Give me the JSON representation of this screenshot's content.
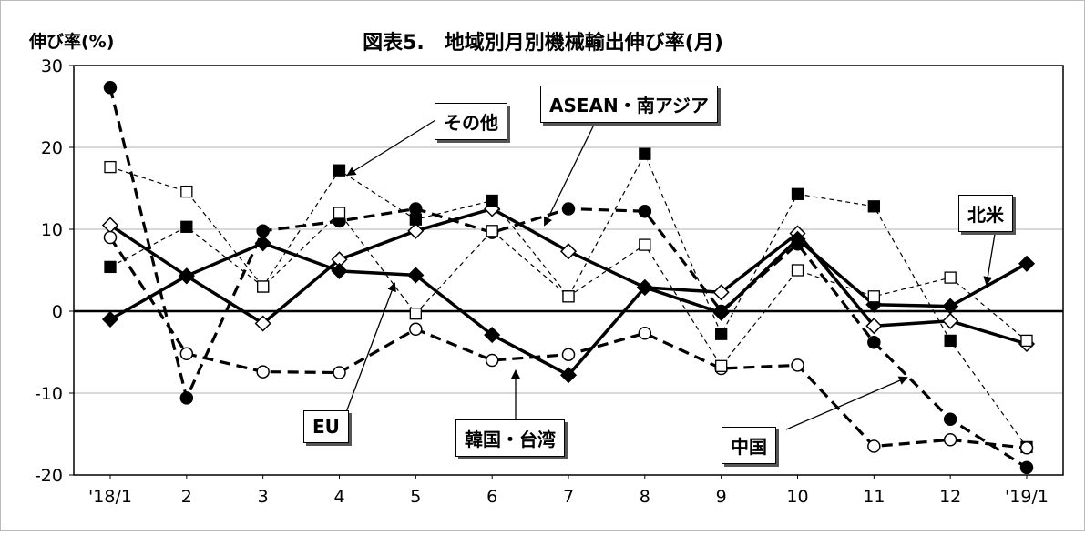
{
  "chart_data": {
    "type": "line",
    "title": "図表5.　地域別月別機械輸出伸び率(月)",
    "ylabel": "伸び率(%)",
    "xlabel": "",
    "categories": [
      "'18/1",
      "2",
      "3",
      "4",
      "5",
      "6",
      "7",
      "8",
      "9",
      "10",
      "11",
      "12",
      "'19/1"
    ],
    "ylim": [
      -20,
      30
    ],
    "yticks": [
      -20,
      -10,
      0,
      10,
      20,
      30
    ],
    "grid": true,
    "series": [
      {
        "name": "北米",
        "values": [
          10.5,
          4.3,
          -1.5,
          6.3,
          9.8,
          12.5,
          7.3,
          2.9,
          2.3,
          9.5,
          -1.8,
          -1.2,
          -4.0
        ]
      },
      {
        "name": "EU",
        "values": [
          -1.0,
          4.3,
          8.3,
          4.9,
          4.4,
          -2.9,
          -7.8,
          2.9,
          -0.2,
          8.8,
          0.8,
          0.6,
          5.8
        ]
      },
      {
        "name": "ASEAN・南アジア",
        "values": [
          5.4,
          10.3,
          3.0,
          17.2,
          11.2,
          13.5,
          1.8,
          19.2,
          -2.8,
          14.3,
          12.8,
          -3.6,
          -16.6
        ]
      },
      {
        "name": "中国",
        "values": [
          27.3,
          -10.6,
          9.8,
          11.0,
          12.5,
          9.6,
          12.5,
          12.2,
          0.0,
          8.2,
          -3.8,
          -13.2,
          -19.1
        ]
      },
      {
        "name": "韓国・台湾",
        "values": [
          9.0,
          -5.2,
          -7.4,
          -7.5,
          -2.2,
          -6.0,
          -5.3,
          -2.7,
          -7.0,
          -6.6,
          -16.5,
          -15.7,
          -16.7
        ]
      },
      {
        "name": "その他",
        "values": [
          17.6,
          14.6,
          3.0,
          12.0,
          -0.3,
          9.8,
          1.8,
          8.1,
          -6.7,
          5.0,
          1.8,
          4.1,
          -3.6
        ]
      }
    ],
    "annotations": [
      "その他",
      "ASEAN・南アジア",
      "北米",
      "EU",
      "韓国・台湾",
      "中国"
    ]
  }
}
